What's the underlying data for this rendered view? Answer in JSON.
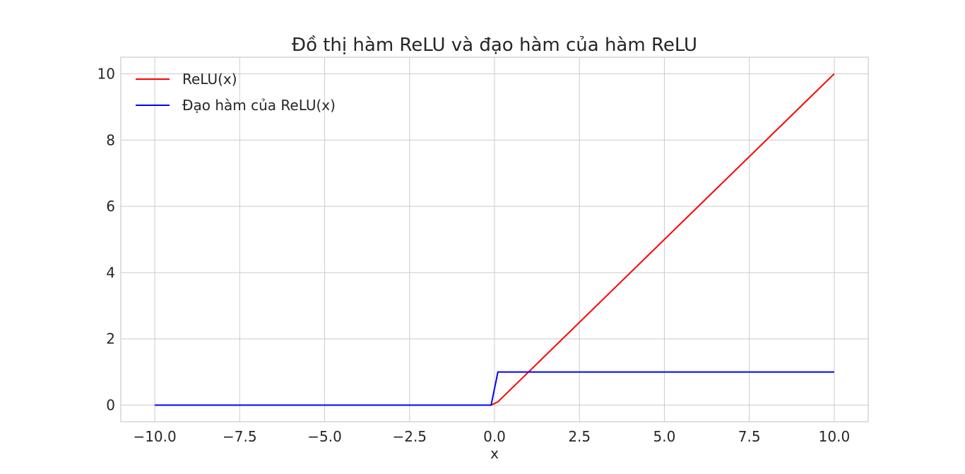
{
  "chart_data": {
    "type": "line",
    "title": "Đồ thị hàm ReLU và đạo hàm của hàm ReLU",
    "xlabel": "x",
    "ylabel": "",
    "xlim": [
      -11,
      11
    ],
    "ylim": [
      -0.5,
      10.5
    ],
    "xticks": [
      -10.0,
      -7.5,
      -5.0,
      -2.5,
      0.0,
      2.5,
      5.0,
      7.5,
      10.0
    ],
    "xtick_labels": [
      "−10.0",
      "−7.5",
      "−5.0",
      "−2.5",
      "0.0",
      "2.5",
      "5.0",
      "7.5",
      "10.0"
    ],
    "yticks": [
      0,
      2,
      4,
      6,
      8,
      10
    ],
    "ytick_labels": [
      "0",
      "2",
      "4",
      "6",
      "8",
      "10"
    ],
    "grid": true,
    "legend_position": "top-left",
    "series": [
      {
        "name": "ReLU(x)",
        "color": "#ff0000",
        "x": [
          -10.0,
          -0.1,
          0.1,
          10.0
        ],
        "y": [
          0,
          0,
          0.1,
          10.0
        ]
      },
      {
        "name": "Đạo hàm của ReLU(x)",
        "color": "#0000ff",
        "x": [
          -10.0,
          -0.1,
          0.1,
          10.0
        ],
        "y": [
          0,
          0,
          1,
          1
        ]
      }
    ]
  }
}
